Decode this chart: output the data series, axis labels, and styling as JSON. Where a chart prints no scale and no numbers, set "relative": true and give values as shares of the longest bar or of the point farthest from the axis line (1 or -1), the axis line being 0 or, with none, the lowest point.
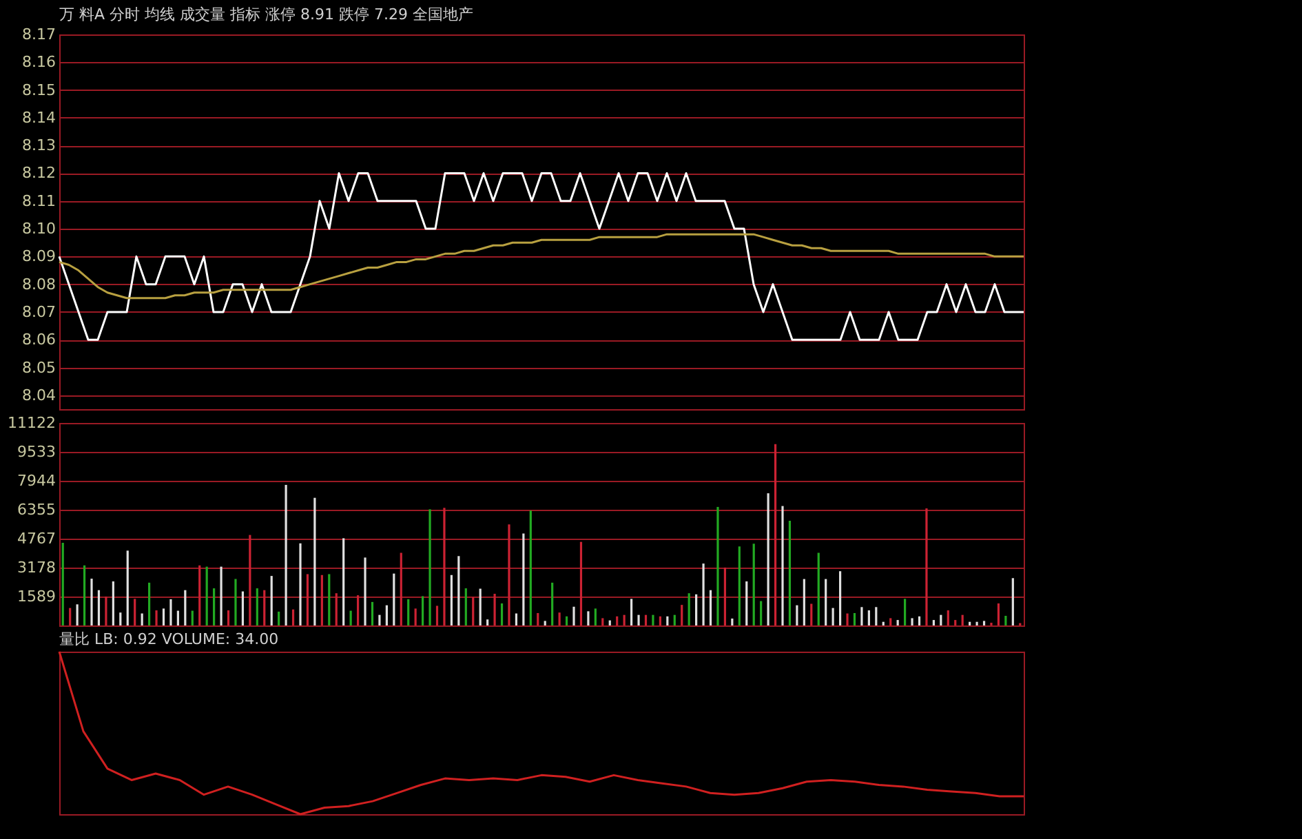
{
  "chart_data": [
    {
      "type": "line",
      "annotations": [
        "万",
        "料A",
        "分时",
        "均线",
        "成交量",
        "指标",
        "涨停 8.91",
        "跌停 7.29",
        "全国地产"
      ],
      "categories": [
        null,
        null,
        null,
        null,
        null,
        null,
        null,
        null,
        null,
        null,
        null,
        null,
        null,
        null,
        null,
        null,
        null,
        null,
        null,
        null,
        null,
        null,
        null,
        null,
        null,
        null,
        null,
        null,
        null,
        null,
        null,
        null,
        null,
        null,
        null,
        null,
        null,
        null,
        null,
        null,
        null,
        null,
        null,
        null,
        null,
        null,
        null,
        null,
        null,
        null,
        null,
        null,
        null,
        null,
        null,
        null,
        null,
        null,
        null,
        null,
        null,
        null,
        null,
        null,
        null,
        null,
        null,
        null,
        null,
        null,
        null,
        null,
        null,
        null,
        null,
        null,
        null,
        null,
        null,
        null,
        null,
        null,
        null,
        null,
        null,
        null,
        null,
        null,
        null,
        null,
        null,
        null,
        null,
        null,
        null,
        null,
        null,
        null,
        null,
        null,
        null
      ],
      "series": [
        {
          "color": "#ffffff",
          "values": [
            8.09,
            8.08,
            8.07,
            8.06,
            8.06,
            8.07,
            8.07,
            8.07,
            8.09,
            8.08,
            8.08,
            8.09,
            8.09,
            8.09,
            8.08,
            8.09,
            8.07,
            8.07,
            8.08,
            8.08,
            8.07,
            8.08,
            8.07,
            8.07,
            8.07,
            8.08,
            8.09,
            8.11,
            8.1,
            8.12,
            8.11,
            8.12,
            8.12,
            8.11,
            8.11,
            8.11,
            8.11,
            8.11,
            8.1,
            8.1,
            8.12,
            8.12,
            8.12,
            8.11,
            8.12,
            8.11,
            8.12,
            8.12,
            8.12,
            8.11,
            8.12,
            8.12,
            8.11,
            8.11,
            8.12,
            8.11,
            8.1,
            8.11,
            8.12,
            8.11,
            8.12,
            8.12,
            8.11,
            8.12,
            8.11,
            8.12,
            8.11,
            8.11,
            8.11,
            8.11,
            8.1,
            8.1,
            8.08,
            8.07,
            8.08,
            8.07,
            8.06,
            8.06,
            8.06,
            8.06,
            8.06,
            8.06,
            8.07,
            8.06,
            8.06,
            8.06,
            8.07,
            8.06,
            8.06,
            8.06,
            8.07,
            8.07,
            8.08,
            8.07,
            8.08,
            8.07,
            8.07,
            8.08,
            8.07,
            8.07,
            8.07
          ]
        },
        {
          "color": "#b8a040",
          "values": [
            8.088,
            8.087,
            8.085,
            8.082,
            8.079,
            8.077,
            8.076,
            8.075,
            8.075,
            8.075,
            8.075,
            8.075,
            8.076,
            8.076,
            8.077,
            8.077,
            8.077,
            8.078,
            8.078,
            8.078,
            8.078,
            8.078,
            8.078,
            8.078,
            8.078,
            8.079,
            8.08,
            8.081,
            8.082,
            8.083,
            8.084,
            8.085,
            8.086,
            8.086,
            8.087,
            8.088,
            8.088,
            8.089,
            8.089,
            8.09,
            8.091,
            8.091,
            8.092,
            8.092,
            8.093,
            8.094,
            8.094,
            8.095,
            8.095,
            8.095,
            8.096,
            8.096,
            8.096,
            8.096,
            8.096,
            8.096,
            8.097,
            8.097,
            8.097,
            8.097,
            8.097,
            8.097,
            8.097,
            8.098,
            8.098,
            8.098,
            8.098,
            8.098,
            8.098,
            8.098,
            8.098,
            8.098,
            8.098,
            8.097,
            8.096,
            8.095,
            8.094,
            8.094,
            8.093,
            8.093,
            8.092,
            8.092,
            8.092,
            8.092,
            8.092,
            8.092,
            8.092,
            8.091,
            8.091,
            8.091,
            8.091,
            8.091,
            8.091,
            8.091,
            8.091,
            8.091,
            8.091,
            8.09,
            8.09,
            8.09,
            8.09
          ]
        }
      ],
      "ylim": [
        8.035,
        8.17
      ],
      "yticks": [
        8.04,
        8.05,
        8.06,
        8.07,
        8.08,
        8.09,
        {
          "value": 8.1,
          "label": "8.10"
        },
        8.11,
        8.12,
        8.13,
        8.14,
        8.15,
        8.16,
        8.17
      ],
      "grid": "y",
      "tick_labels": "y"
    },
    {
      "type": "bar",
      "categories": [
        null,
        null,
        null,
        null,
        null,
        null,
        null,
        null,
        null,
        null,
        null,
        null,
        null,
        null,
        null,
        null,
        null,
        null,
        null,
        null,
        null,
        null,
        null,
        null,
        null,
        null,
        null,
        null,
        null,
        null,
        null,
        null,
        null,
        null,
        null,
        null,
        null,
        null,
        null,
        null,
        null,
        null,
        null,
        null,
        null,
        null,
        null,
        null,
        null,
        null,
        null,
        null,
        null,
        null,
        null,
        null,
        null,
        null,
        null,
        null,
        null,
        null,
        null,
        null,
        null,
        null,
        null,
        null,
        null,
        null,
        null,
        null,
        null,
        null,
        null,
        null,
        null,
        null,
        null,
        null,
        null,
        null,
        null,
        null,
        null,
        null,
        null,
        null,
        null,
        null,
        null,
        null,
        null,
        null,
        null,
        null,
        null,
        null,
        null,
        null,
        null,
        null,
        null,
        null,
        null,
        null,
        null,
        null,
        null,
        null,
        null,
        null,
        null,
        null,
        null,
        null,
        null,
        null,
        null,
        null,
        null,
        null,
        null,
        null,
        null,
        null,
        null,
        null,
        null,
        null,
        null,
        null,
        null,
        null
      ],
      "values": [
        4540,
        960,
        1160,
        3300,
        2570,
        1940,
        1590,
        2420,
        710,
        4110,
        1460,
        660,
        2350,
        830,
        930,
        1440,
        810,
        1940,
        810,
        3300,
        3230,
        2040,
        3230,
        830,
        2550,
        1870,
        4970,
        2040,
        1940,
        2720,
        760,
        7720,
        880,
        4510,
        2820,
        7010,
        2770,
        2820,
        1770,
        4790,
        810,
        1660,
        3730,
        1290,
        580,
        1110,
        2850,
        3990,
        1440,
        930,
        1610,
        6380,
        1080,
        6460,
        2770,
        3810,
        2040,
        1560,
        2020,
        330,
        1740,
        1210,
        5550,
        660,
        5050,
        6310,
        680,
        250,
        2350,
        710,
        500,
        1030,
        4590,
        780,
        930,
        400,
        280,
        500,
        580,
        1460,
        580,
        580,
        580,
        500,
        500,
        580,
        1130,
        1770,
        1710,
        3400,
        1940,
        6510,
        3180,
        380,
        4340,
        2420,
        4490,
        1340,
        7260,
        9960,
        6560,
        5750,
        1110,
        2550,
        1190,
        3990,
        2550,
        960,
        2980,
        660,
        680,
        1010,
        830,
        1010,
        200,
        400,
        300,
        1460,
        400,
        500,
        6430,
        300,
        580,
        830,
        300,
        580,
        200,
        200,
        250,
        150,
        1210,
        530,
        2600,
        130
      ],
      "colors": [
        "#22aa22",
        "#cc2233",
        "#e0e0e0",
        "#22aa22",
        "#e0e0e0",
        "#e0e0e0",
        "#cc2233",
        "#e0e0e0",
        "#e0e0e0",
        "#e0e0e0",
        "#cc2233",
        "#e0e0e0",
        "#22aa22",
        "#cc2233",
        "#e0e0e0",
        "#e0e0e0",
        "#e0e0e0",
        "#e0e0e0",
        "#22aa22",
        "#cc2233",
        "#22aa22",
        "#22aa22",
        "#e0e0e0",
        "#cc2233",
        "#22aa22",
        "#e0e0e0",
        "#cc2233",
        "#22aa22",
        "#cc2233",
        "#e0e0e0",
        "#22aa22",
        "#e0e0e0",
        "#cc2233",
        "#e0e0e0",
        "#cc2233",
        "#e0e0e0",
        "#cc2233",
        "#22aa22",
        "#cc2233",
        "#e0e0e0",
        "#22aa22",
        "#cc2233",
        "#e0e0e0",
        "#22aa22",
        "#e0e0e0",
        "#e0e0e0",
        "#e0e0e0",
        "#cc2233",
        "#22aa22",
        "#cc2233",
        "#22aa22",
        "#22aa22",
        "#cc2233",
        "#cc2233",
        "#e0e0e0",
        "#e0e0e0",
        "#22aa22",
        "#cc2233",
        "#e0e0e0",
        "#e0e0e0",
        "#cc2233",
        "#22aa22",
        "#cc2233",
        "#e0e0e0",
        "#e0e0e0",
        "#22aa22",
        "#cc2233",
        "#e0e0e0",
        "#22aa22",
        "#cc2233",
        "#22aa22",
        "#e0e0e0",
        "#cc2233",
        "#e0e0e0",
        "#22aa22",
        "#cc2233",
        "#e0e0e0",
        "#cc2233",
        "#cc2233",
        "#e0e0e0",
        "#e0e0e0",
        "#cc2233",
        "#22aa22",
        "#cc2233",
        "#e0e0e0",
        "#22aa22",
        "#cc2233",
        "#22aa22",
        "#e0e0e0",
        "#e0e0e0",
        "#e0e0e0",
        "#22aa22",
        "#cc2233",
        "#e0e0e0",
        "#22aa22",
        "#e0e0e0",
        "#22aa22",
        "#22aa22",
        "#e0e0e0",
        "#cc2233",
        "#e0e0e0",
        "#22aa22",
        "#e0e0e0",
        "#e0e0e0",
        "#cc2233",
        "#22aa22",
        "#e0e0e0",
        "#e0e0e0",
        "#e0e0e0",
        "#cc2233",
        "#22aa22",
        "#e0e0e0",
        "#e0e0e0",
        "#e0e0e0",
        "#e0e0e0",
        "#cc2233",
        "#e0e0e0",
        "#22aa22",
        "#e0e0e0",
        "#e0e0e0",
        "#cc2233",
        "#e0e0e0",
        "#e0e0e0",
        "#cc2233",
        "#cc2233",
        "#cc2233",
        "#e0e0e0",
        "#e0e0e0",
        "#e0e0e0",
        "#cc2233",
        "#cc2233",
        "#22aa22",
        "#e0e0e0",
        "#cc2233"
      ],
      "ylim": [
        0,
        11122
      ],
      "yticks": [
        1589,
        3178,
        4767,
        6355,
        7944,
        9533,
        11122
      ],
      "grid": "y",
      "tick_labels": "y"
    },
    {
      "type": "line",
      "relative": true,
      "annotations": [
        "量比 LB: 0.92 VOLUME: 34.00"
      ],
      "categories": [
        null,
        null,
        null,
        null,
        null,
        null,
        null,
        null,
        null,
        null,
        null,
        null,
        null,
        null,
        null,
        null,
        null,
        null,
        null,
        null,
        null,
        null,
        null,
        null,
        null,
        null,
        null,
        null,
        null,
        null,
        null,
        null,
        null,
        null,
        null,
        null,
        null,
        null,
        null,
        null,
        null
      ],
      "series": [
        {
          "color": "#d02020",
          "values": [
            1.0,
            0.51,
            0.28,
            0.21,
            0.25,
            0.21,
            0.12,
            0.17,
            0.12,
            0.06,
            0.0,
            0.04,
            0.05,
            0.08,
            0.13,
            0.18,
            0.22,
            0.21,
            0.22,
            0.21,
            0.24,
            0.23,
            0.2,
            0.24,
            0.21,
            0.19,
            0.17,
            0.13,
            0.12,
            0.13,
            0.16,
            0.2,
            0.21,
            0.2,
            0.18,
            0.17,
            0.15,
            0.14,
            0.13,
            0.11,
            0.11
          ]
        }
      ],
      "tick_labels": false
    }
  ]
}
